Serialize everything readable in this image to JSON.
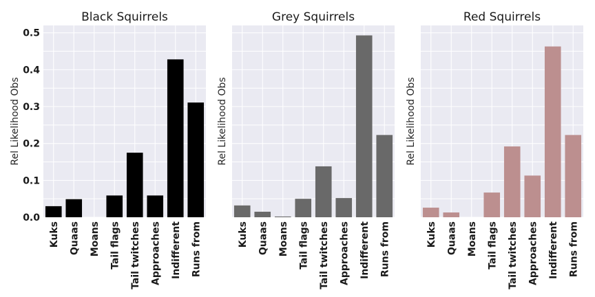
{
  "chart_data": [
    {
      "type": "bar",
      "title": "Black Squirrels",
      "ylabel": "Rel Likelihood Obs",
      "categories": [
        "Kuks",
        "Quaas",
        "Moans",
        "Tail flags",
        "Tail twitches",
        "Approaches",
        "Indifferent",
        "Runs from"
      ],
      "values": [
        0.03,
        0.049,
        0.0,
        0.059,
        0.175,
        0.059,
        0.428,
        0.311
      ],
      "ylim": [
        0,
        0.52
      ],
      "yticks": [
        "0.0",
        "0.1",
        "0.2",
        "0.3",
        "0.4",
        "0.5"
      ],
      "color": "#000000",
      "grid": true,
      "show_yticks": true
    },
    {
      "type": "bar",
      "title": "Grey Squirrels",
      "ylabel": "Rel Likelihood Obs",
      "categories": [
        "Kuks",
        "Quaas",
        "Moans",
        "Tail flags",
        "Tail twitches",
        "Approaches",
        "Indifferent",
        "Runs from"
      ],
      "values": [
        0.032,
        0.015,
        0.002,
        0.05,
        0.138,
        0.052,
        0.493,
        0.223
      ],
      "ylim": [
        0,
        0.52
      ],
      "yticks": [],
      "color": "#696969",
      "grid": true,
      "show_yticks": false
    },
    {
      "type": "bar",
      "title": "Red Squirrels",
      "ylabel": "Rel Likelihood Obs",
      "categories": [
        "Kuks",
        "Quaas",
        "Moans",
        "Tail flags",
        "Tail twitches",
        "Approaches",
        "Indifferent",
        "Runs from"
      ],
      "values": [
        0.026,
        0.013,
        0.0,
        0.067,
        0.192,
        0.113,
        0.463,
        0.223
      ],
      "ylim": [
        0,
        0.52
      ],
      "yticks": [],
      "color": "#bc8f8f",
      "grid": true,
      "show_yticks": false
    }
  ]
}
